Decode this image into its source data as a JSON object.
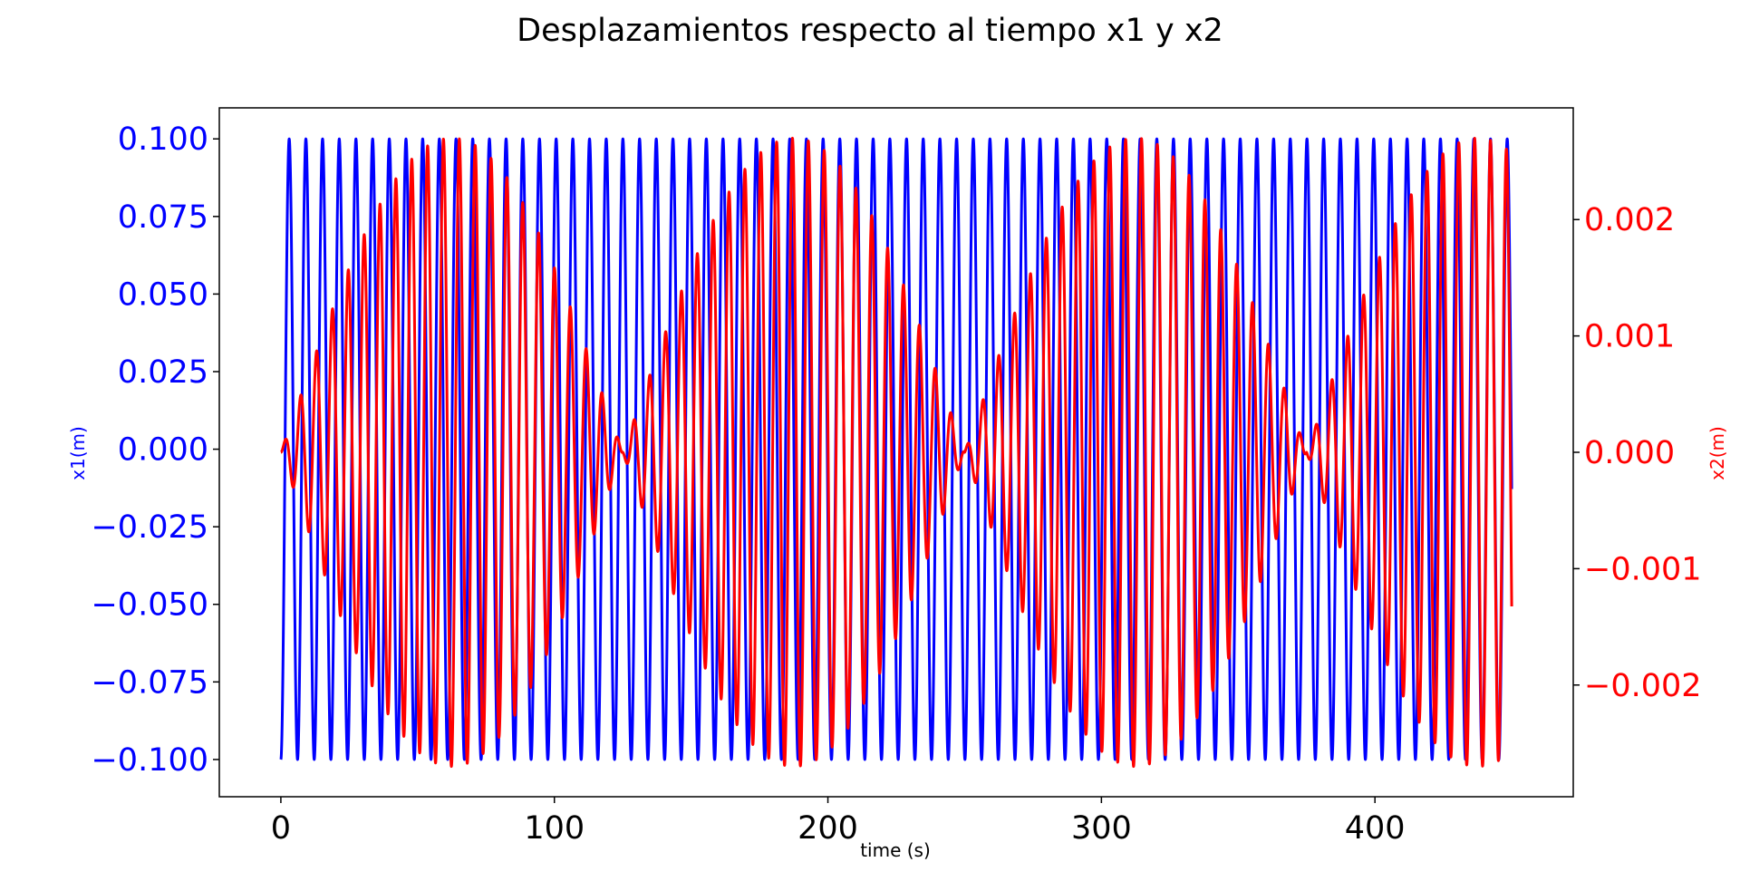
{
  "chart_data": {
    "type": "line",
    "title": "Desplazamientos respecto al tiempo x1 y x2",
    "xlabel": "time (s)",
    "ylabel_left": "x1(m)",
    "ylabel_right": "x2(m)",
    "xlim": [
      -22.5,
      472.5
    ],
    "ylim_left": [
      -0.112,
      0.11
    ],
    "ylim_right": [
      -0.00296,
      0.00296
    ],
    "x_ticks": [
      0,
      100,
      200,
      300,
      400
    ],
    "x_tick_labels": [
      "0",
      "100",
      "200",
      "300",
      "400"
    ],
    "left_ticks": [
      0.1,
      0.075,
      0.05,
      0.025,
      0.0,
      -0.025,
      -0.05,
      -0.075,
      -0.1
    ],
    "left_tick_labels": [
      "0.100",
      "0.075",
      "0.050",
      "0.025",
      "0.000",
      "−0.025",
      "−0.050",
      "−0.075",
      "−0.100"
    ],
    "right_ticks": [
      0.002,
      0.001,
      0.0,
      -0.001,
      -0.002
    ],
    "right_tick_labels": [
      "0.002",
      "0.001",
      "0.000",
      "−0.001",
      "−0.002"
    ],
    "grid": false,
    "legend": "none",
    "series": [
      {
        "name": "x1(m)",
        "axis": "left",
        "color": "#0000ff",
        "t_start": 0,
        "t_end": 450,
        "amplitude": 0.1,
        "period_s": 6.1,
        "initial_value": -0.1
      },
      {
        "name": "x2(m)",
        "axis": "right",
        "color": "#ff0000",
        "t_start": 0,
        "t_end": 450,
        "amplitude_max": 0.0027,
        "period_s": 5.8,
        "beat_period_s": 125,
        "initial_value": 0.0
      }
    ]
  }
}
